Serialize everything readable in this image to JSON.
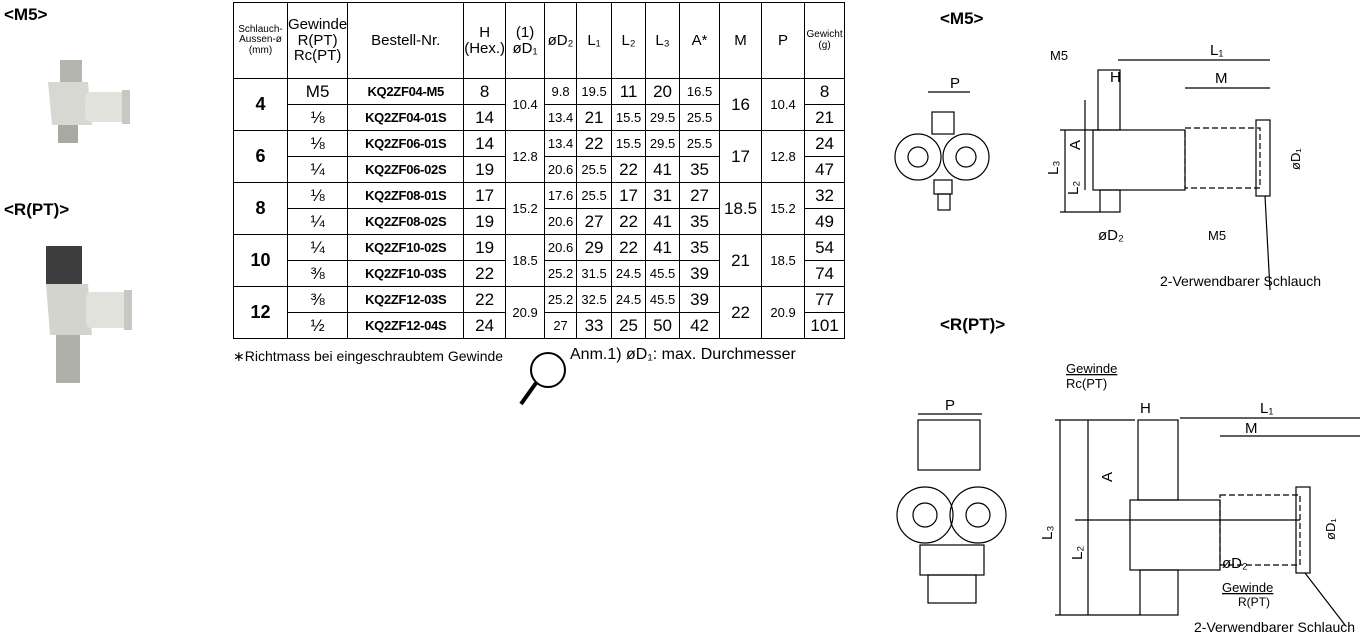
{
  "product_labels": {
    "m5": "<M5>",
    "rpt": "<R(PT)>"
  },
  "table": {
    "header": [
      "Schlauch-\nAussen-ø\n(mm)",
      "Gewinde\nR(PT)\nRc(PT)",
      "Bestell-Nr.",
      "H\n(Hex.)",
      "(1)\nøD₁",
      "øD₂",
      "L₁",
      "L₂",
      "L₃",
      "A*",
      "M",
      "P",
      "Gewicht\n(g)"
    ],
    "groups": [
      {
        "size": "4",
        "d1": "10.4",
        "m": "16",
        "p": "10.4",
        "rows": [
          [
            "M5",
            "KQ2ZF04-M5",
            "8",
            "9.8",
            "19.5",
            "11",
            "20",
            "16.5",
            "8"
          ],
          [
            "⅛",
            "KQ2ZF04-01S",
            "14",
            "13.4",
            "21",
            "15.5",
            "29.5",
            "25.5",
            "21"
          ]
        ]
      },
      {
        "size": "6",
        "d1": "12.8",
        "m": "17",
        "p": "12.8",
        "rows": [
          [
            "⅛",
            "KQ2ZF06-01S",
            "14",
            "13.4",
            "22",
            "15.5",
            "29.5",
            "25.5",
            "24"
          ],
          [
            "¼",
            "KQ2ZF06-02S",
            "19",
            "20.6",
            "25.5",
            "22",
            "41",
            "35",
            "47"
          ]
        ]
      },
      {
        "size": "8",
        "d1": "15.2",
        "m": "18.5",
        "p": "15.2",
        "rows": [
          [
            "⅛",
            "KQ2ZF08-01S",
            "17",
            "17.6",
            "25.5",
            "17",
            "31",
            "27",
            "32"
          ],
          [
            "¼",
            "KQ2ZF08-02S",
            "19",
            "20.6",
            "27",
            "22",
            "41",
            "35",
            "49"
          ]
        ]
      },
      {
        "size": "10",
        "d1": "18.5",
        "m": "21",
        "p": "18.5",
        "rows": [
          [
            "¼",
            "KQ2ZF10-02S",
            "19",
            "20.6",
            "29",
            "22",
            "41",
            "35",
            "54"
          ],
          [
            "⅜",
            "KQ2ZF10-03S",
            "22",
            "25.2",
            "31.5",
            "24.5",
            "45.5",
            "39",
            "74"
          ]
        ]
      },
      {
        "size": "12",
        "d1": "20.9",
        "m": "22",
        "p": "20.9",
        "rows": [
          [
            "⅜",
            "KQ2ZF12-03S",
            "22",
            "25.2",
            "32.5",
            "24.5",
            "45.5",
            "39",
            "77"
          ],
          [
            "½",
            "KQ2ZF12-04S",
            "24",
            "27",
            "33",
            "25",
            "50",
            "42",
            "101"
          ]
        ]
      }
    ]
  },
  "notes": {
    "richtmass": "∗Richtmass bei eingeschraubtem Gewinde",
    "anm": "Anm.1) øD₁: max. Durchmesser"
  },
  "drawing_m5": {
    "title": "<M5>",
    "labels": {
      "p": "P",
      "m5_top": "M5",
      "l1": "L₁",
      "h": "H",
      "m": "M",
      "a": "A",
      "l3": "L₃",
      "l2": "L₂",
      "d1": "øD₁",
      "d2": "øD₂",
      "m5_bottom": "M5",
      "tube": "2-Verwendbarer Schlauch"
    }
  },
  "drawing_rpt": {
    "title": "<R(PT)>",
    "labels": {
      "gewinde_top": "Gewinde",
      "rc": "Rc(PT)",
      "p": "P",
      "h": "H",
      "l1": "L₁",
      "m": "M",
      "a": "A",
      "l3": "L₃",
      "l2": "L₂",
      "d1": "øD₁",
      "d2": "øD₂",
      "gewinde_bottom": "Gewinde",
      "r": "R(PT)",
      "tube": "2-Verwendbarer Schlauch"
    }
  }
}
